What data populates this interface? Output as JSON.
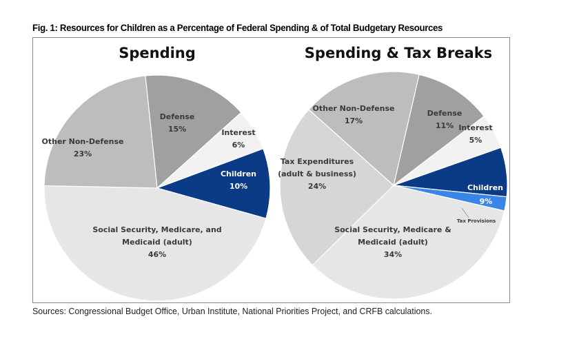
{
  "figure": {
    "title": "Fig. 1: Resources for Children as a Percentage of Federal Spending & of Total Budgetary Resources",
    "sources": "Sources: Congressional Budget Office, Urban Institute, National Priorities Project, and CRFB calculations."
  },
  "chart_data": [
    {
      "type": "pie",
      "title": "Spending",
      "slices": [
        {
          "name": "Defense",
          "value": 15,
          "label": "15%",
          "color": "#a0a0a0"
        },
        {
          "name": "Interest",
          "value": 6,
          "label": "6%",
          "color": "#f2f2f2"
        },
        {
          "name": "Children",
          "value": 10,
          "label": "10%",
          "color": "#0b3a86"
        },
        {
          "name": "Social Security, Medicare, and Medicaid (adult)",
          "value": 46,
          "label": "46%",
          "color": "#e6e6e6"
        },
        {
          "name": "Other Non-Defense",
          "value": 23,
          "label": "23%",
          "color": "#bdbdbd"
        }
      ],
      "labels": [
        {
          "lines": [
            "Defense",
            "15%"
          ],
          "white": false
        },
        {
          "lines": [
            "Interest",
            "6%"
          ],
          "white": false
        },
        {
          "lines": [
            "Children",
            "10%"
          ],
          "white": true
        },
        {
          "lines": [
            "Social Security, Medicare, and",
            "Medicaid (adult)",
            "46%"
          ],
          "white": false
        },
        {
          "lines": [
            "Other Non-Defense",
            "23%"
          ],
          "white": false
        }
      ]
    },
    {
      "type": "pie",
      "title": "Spending & Tax Breaks",
      "slices": [
        {
          "name": "Defense",
          "value": 11,
          "label": "11%",
          "color": "#a0a0a0"
        },
        {
          "name": "Interest",
          "value": 5,
          "label": "5%",
          "color": "#f2f2f2"
        },
        {
          "name": "Children (spending)",
          "value": 7,
          "label": "",
          "color": "#0b3a86"
        },
        {
          "name": "Children (tax provisions)",
          "value": 2,
          "label": "",
          "color": "#3a86e8"
        },
        {
          "name": "Social Security, Medicare & Medicaid (adult)",
          "value": 34,
          "label": "34%",
          "color": "#e6e6e6"
        },
        {
          "name": "Tax Expenditures (adult & business)",
          "value": 24,
          "label": "24%",
          "color": "#d6d6d6"
        },
        {
          "name": "Other Non-Defense",
          "value": 17,
          "label": "17%",
          "color": "#bdbdbd"
        }
      ],
      "children_total": {
        "name": "Children",
        "value": 9,
        "label": "9%"
      },
      "callout": "Tax Provisions",
      "labels": [
        {
          "lines": [
            "Defense",
            "11%"
          ],
          "white": false
        },
        {
          "lines": [
            "Interest",
            "5%"
          ],
          "white": false
        },
        {
          "lines": [
            "Children"
          ],
          "white": true
        },
        {
          "lines": [
            "9%"
          ],
          "white": true
        },
        {
          "lines": [
            "Social Security, Medicare &",
            "Medicaid (adult)",
            "34%"
          ],
          "white": false
        },
        {
          "lines": [
            "Tax Expenditures",
            "(adult & business)",
            "24%"
          ],
          "white": false
        },
        {
          "lines": [
            "Other Non-Defense",
            "17%"
          ],
          "white": false
        }
      ]
    }
  ]
}
